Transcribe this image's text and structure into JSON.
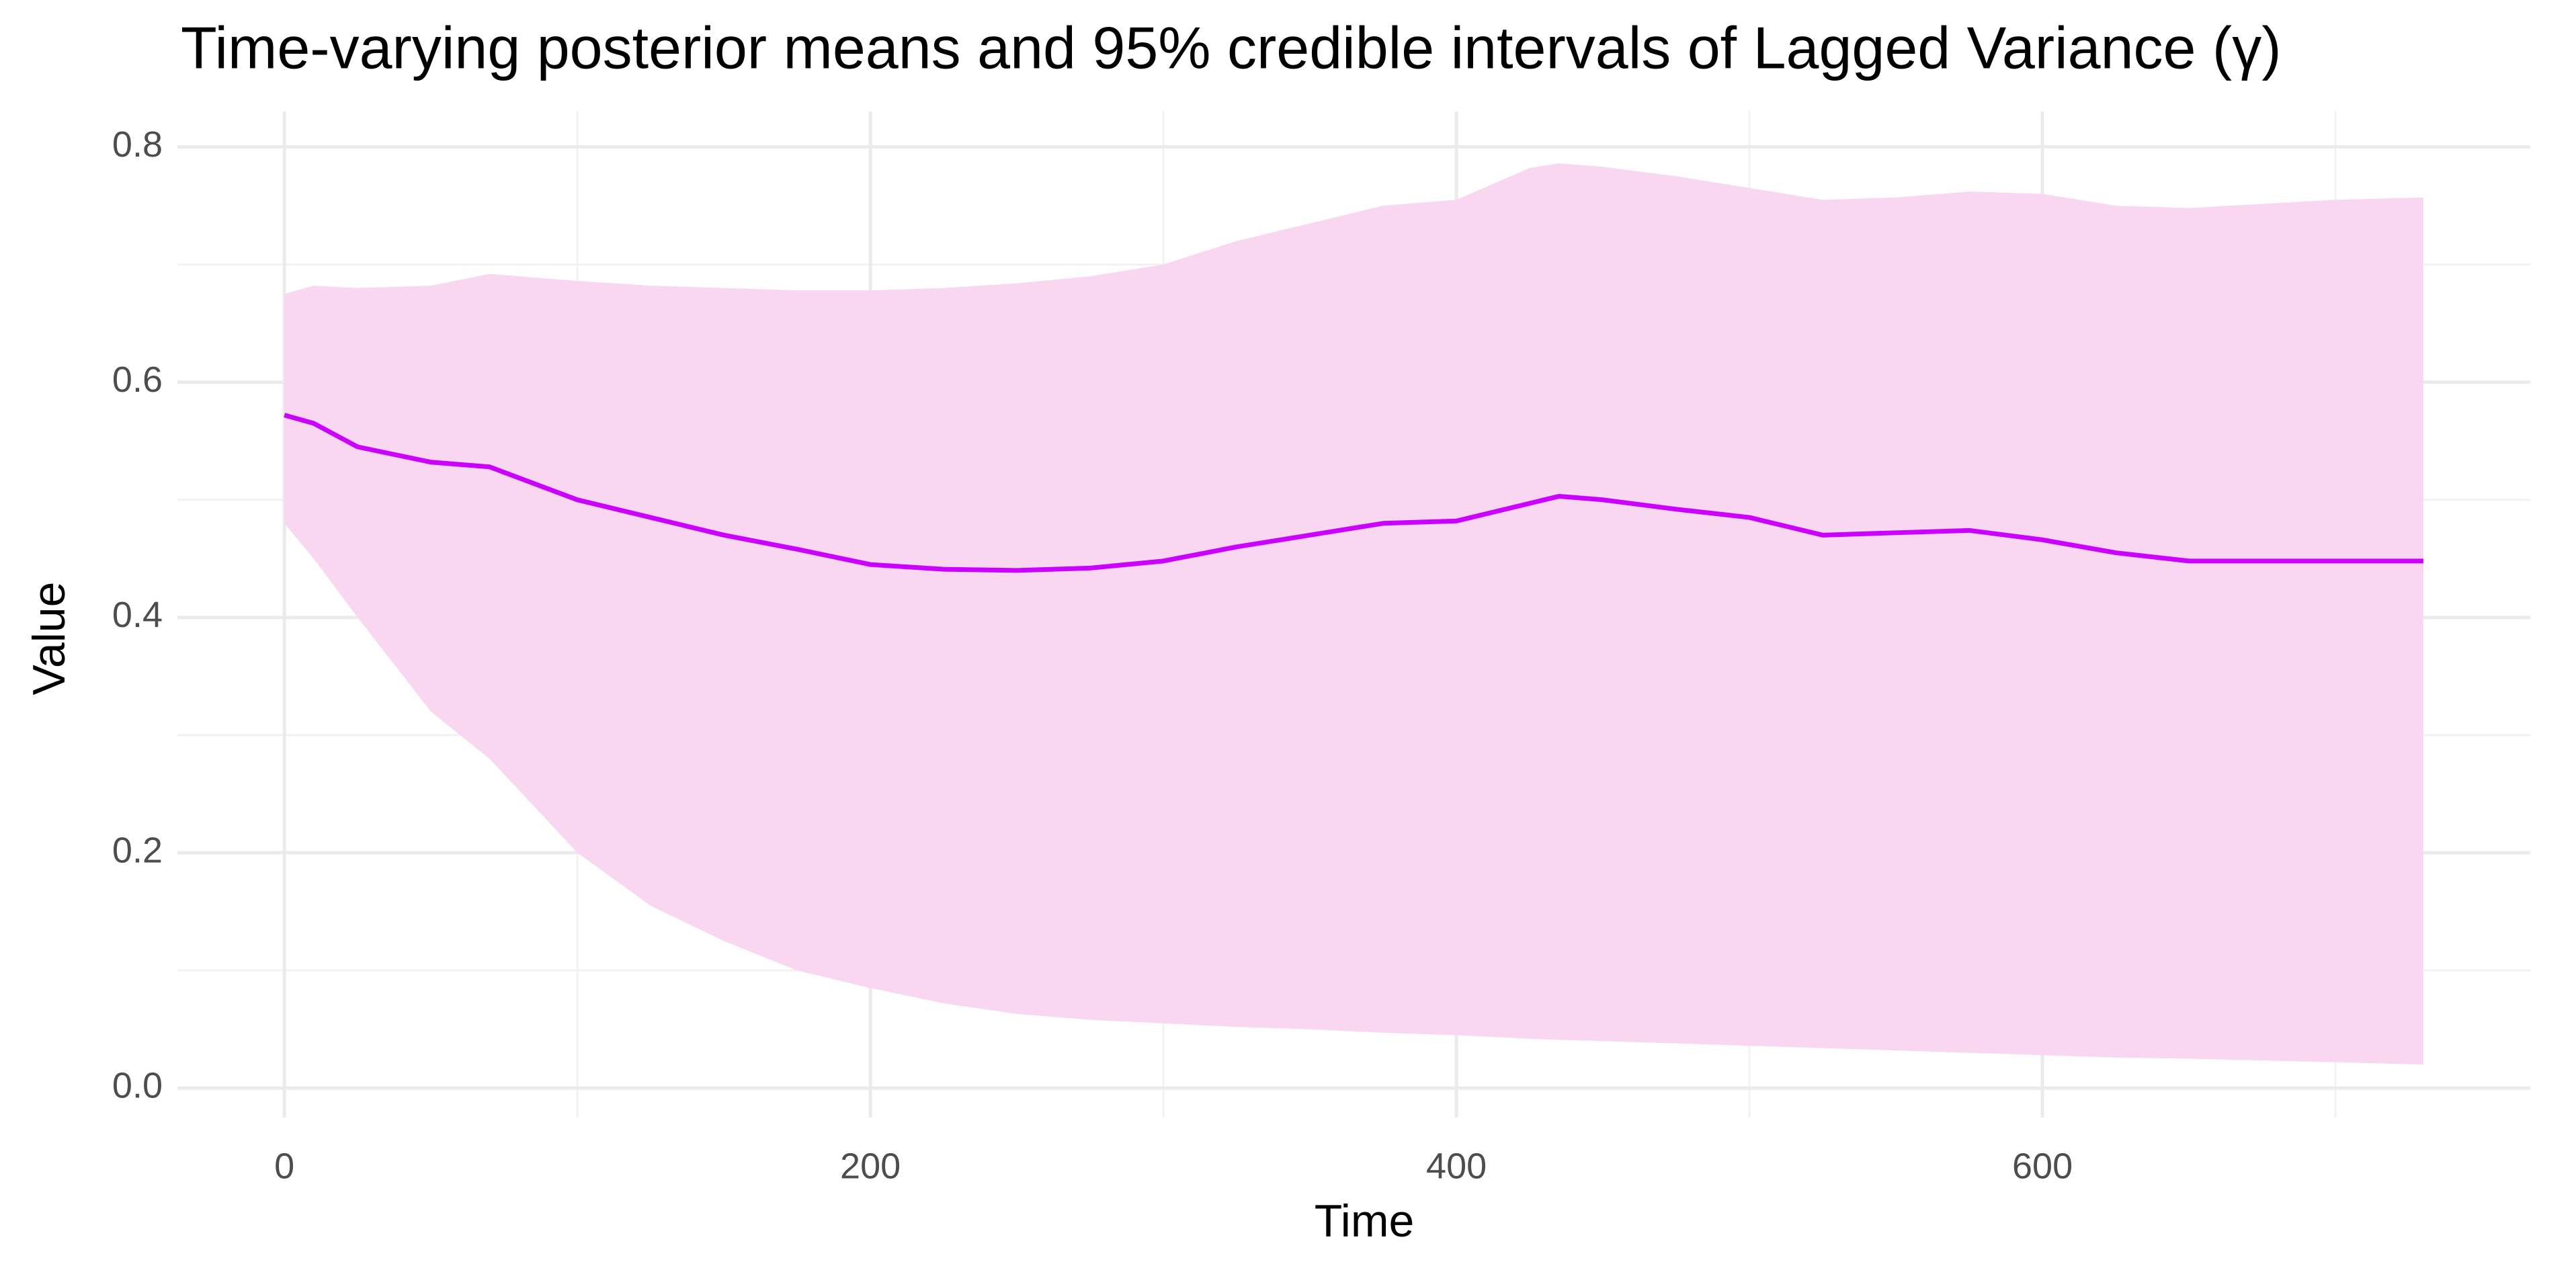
{
  "chart_data": {
    "type": "line",
    "title": "Time-varying posterior means and 95% credible intervals of Lagged Variance (γ)",
    "x_label": "Time",
    "y_label": "Value",
    "x": [
      0,
      10,
      25,
      50,
      70,
      100,
      125,
      150,
      175,
      200,
      225,
      250,
      275,
      300,
      325,
      350,
      375,
      400,
      425,
      435,
      450,
      475,
      500,
      525,
      550,
      575,
      600,
      625,
      650,
      700,
      730
    ],
    "series": [
      {
        "color": "#cc00ff",
        "values": [
          0.572,
          0.565,
          0.545,
          0.532,
          0.528,
          0.5,
          0.485,
          0.47,
          0.458,
          0.445,
          0.441,
          0.44,
          0.442,
          0.448,
          0.46,
          0.47,
          0.48,
          0.482,
          0.497,
          0.503,
          0.5,
          0.492,
          0.485,
          0.47,
          0.472,
          0.474,
          0.466,
          0.455,
          0.448,
          0.448,
          0.448
        ]
      }
    ],
    "band": {
      "color": "#f9d7f1",
      "lower": [
        0.48,
        0.45,
        0.4,
        0.32,
        0.28,
        0.2,
        0.155,
        0.125,
        0.1,
        0.085,
        0.072,
        0.063,
        0.058,
        0.055,
        0.052,
        0.05,
        0.047,
        0.045,
        0.042,
        0.041,
        0.04,
        0.038,
        0.036,
        0.034,
        0.032,
        0.03,
        0.028,
        0.026,
        0.025,
        0.022,
        0.02
      ],
      "upper": [
        0.675,
        0.682,
        0.68,
        0.682,
        0.692,
        0.686,
        0.682,
        0.68,
        0.678,
        0.678,
        0.68,
        0.684,
        0.69,
        0.7,
        0.72,
        0.735,
        0.75,
        0.755,
        0.782,
        0.786,
        0.783,
        0.775,
        0.765,
        0.755,
        0.757,
        0.762,
        0.76,
        0.75,
        0.748,
        0.755,
        0.757
      ]
    },
    "xlim": [
      -36.5,
      766.5
    ],
    "ylim": [
      -0.025,
      0.83
    ],
    "xticks": [
      0,
      200,
      400,
      600
    ],
    "yticks": [
      {
        "value": 0,
        "label": "0.0"
      },
      0.2,
      0.4,
      0.6,
      0.8
    ],
    "x_minor_grid": [
      100,
      300,
      500,
      700
    ],
    "y_minor_grid": [
      0.1,
      0.3,
      0.5,
      0.7
    ],
    "grid": true
  }
}
